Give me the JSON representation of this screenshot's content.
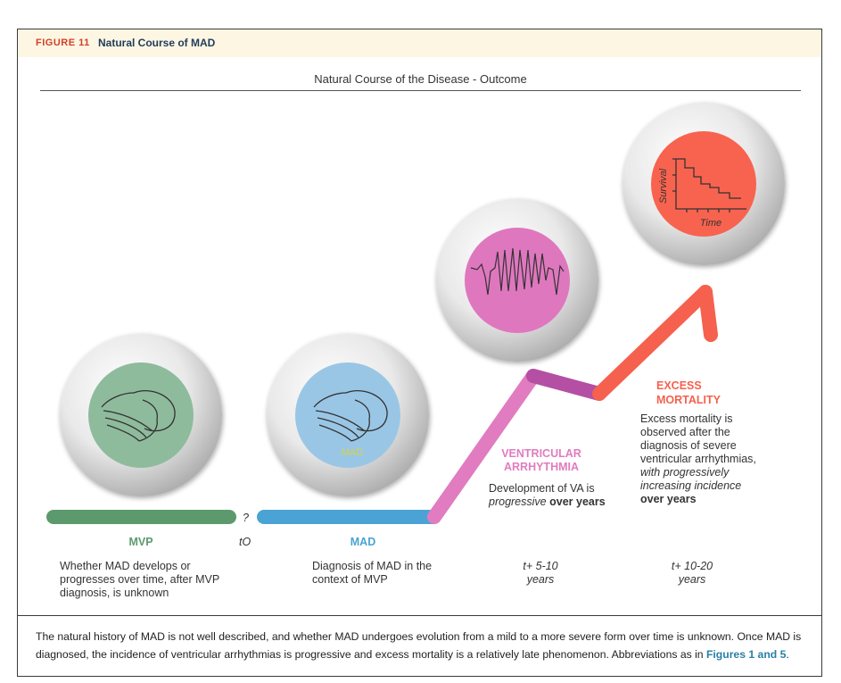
{
  "figure": {
    "label": "FIGURE 11",
    "title": "Natural Course of MAD",
    "subtitle": "Natural Course of the Disease - Outcome"
  },
  "colors": {
    "mvp": "#5c9a6e",
    "mad": "#4aa3d4",
    "va": "#e07cbf",
    "mortality": "#f5614e",
    "header_bg": "#fdf6e3",
    "figure_label": "#d2402a",
    "figure_title": "#1f3c5a",
    "link": "#2a7fa8"
  },
  "timeline": {
    "question_mark": "?",
    "t0": "tO"
  },
  "mvp": {
    "stage_label": "MVP",
    "description": "Whether MAD develops or progresses over time, after MVP diagnosis, is unknown",
    "icon": "heart-outline-icon"
  },
  "mad": {
    "stage_label": "MAD",
    "icon_label": "MAD",
    "description": "Diagnosis of MAD in the context of MVP",
    "icon": "heart-outline-icon"
  },
  "va": {
    "stage_label_line1": "VENTRICULAR",
    "stage_label_line2": "ARRHYTHMIA",
    "description_part1": "Development of VA is",
    "description_italic": "progressive",
    "description_bold": "over years",
    "time_line1": "t+ 5-10",
    "time_line2": "years",
    "icon": "ecg-trace-icon"
  },
  "mortality": {
    "stage_label_line1": "EXCESS",
    "stage_label_line2": "MORTALITY",
    "description": "Excess mortality is observed after the diagnosis of severe ventricular arrhythmias,",
    "description_italic": "with progressively increasing incidence",
    "description_bold": "over years",
    "time_line1": "t+ 10-20",
    "time_line2": "years",
    "icon": "survival-curve-icon",
    "ylabel": "Survival",
    "xlabel": "Time"
  },
  "caption": {
    "text": "The natural history of MAD is not well described, and whether MAD undergoes evolution from a mild to a more severe form over time is unknown. Once MAD is diagnosed, the incidence of ventricular arrhythmias is progressive and excess mortality is a relatively late phenomenon. Abbreviations as in",
    "link": "Figures 1 and 5",
    "end": "."
  }
}
